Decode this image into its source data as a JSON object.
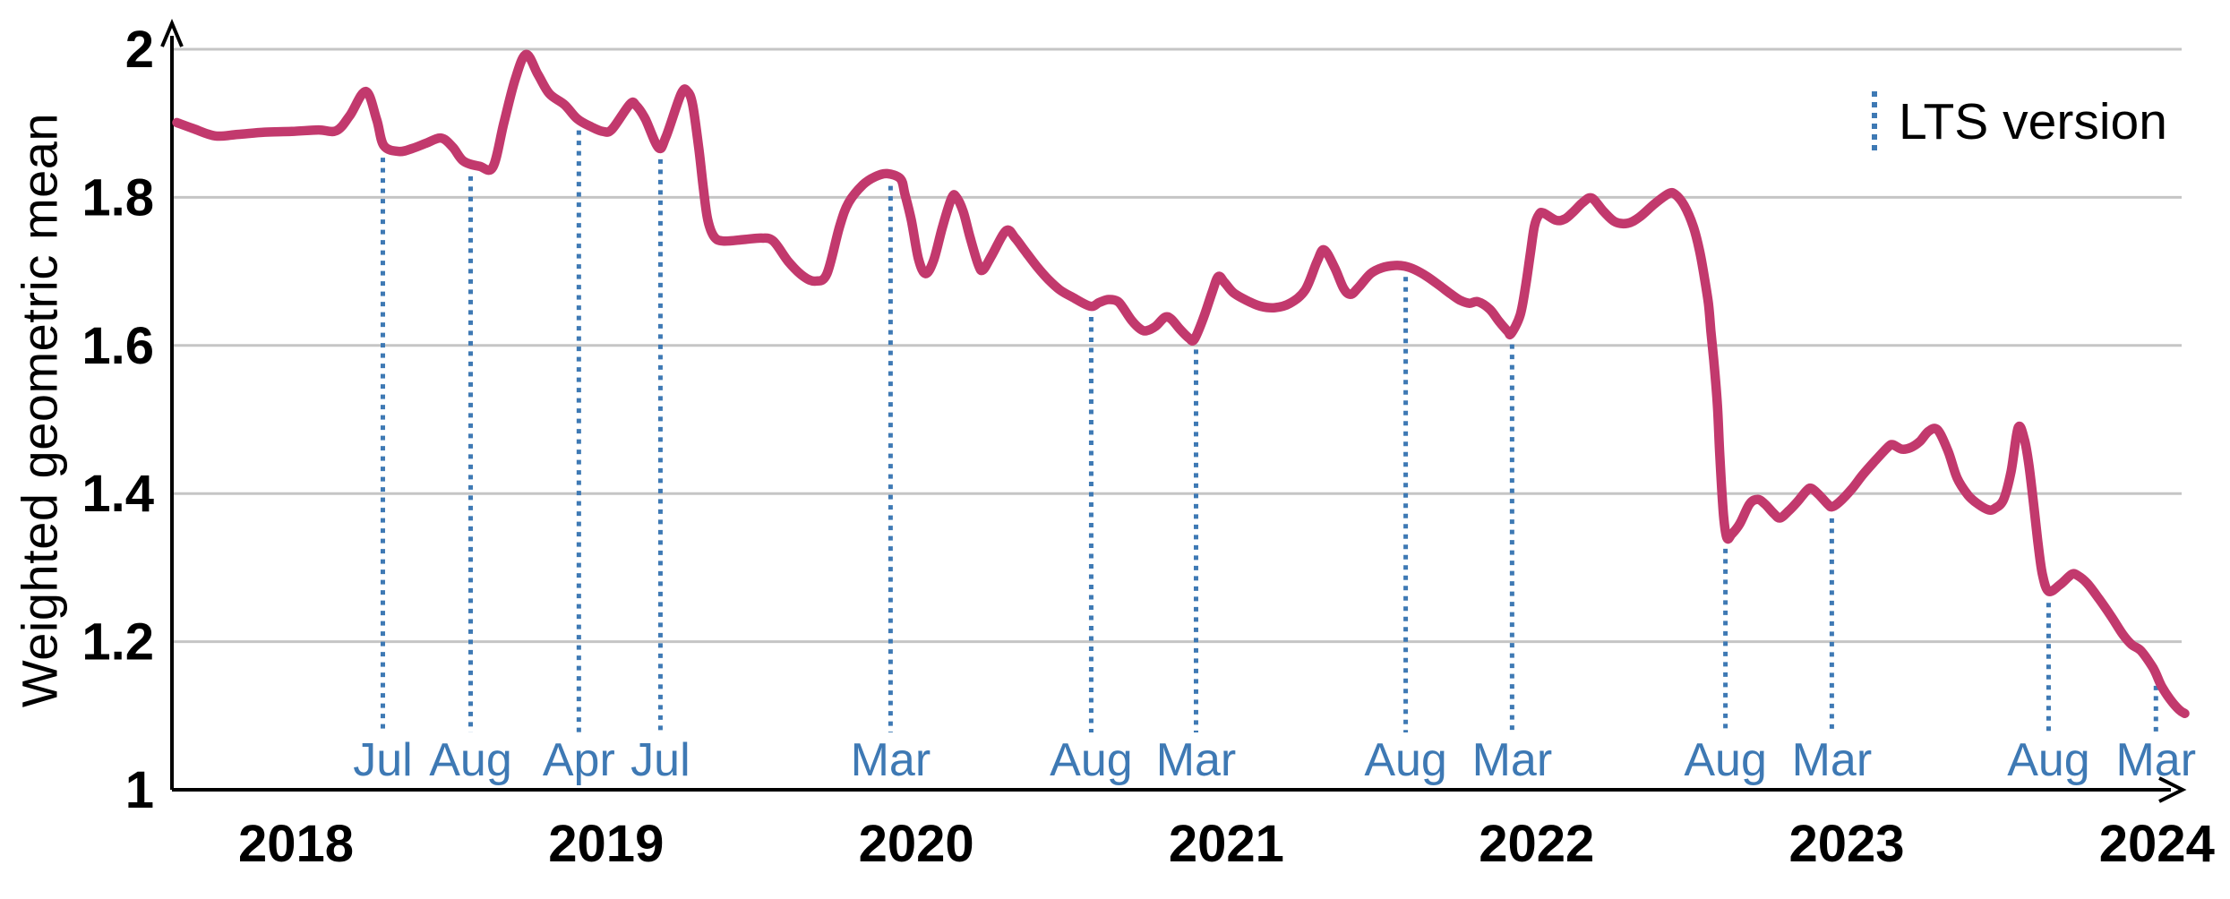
{
  "chart_data": {
    "type": "line",
    "title": "",
    "xlabel": "",
    "ylabel": "Weighted geometric mean",
    "legend_label": "LTS version",
    "legend_position": "top-right",
    "grid": "horizontal",
    "x_axis": {
      "unit": "year",
      "range": [
        2017.6,
        2024.2
      ],
      "ticks": [
        2018,
        2019,
        2020,
        2021,
        2022,
        2023,
        2024
      ]
    },
    "y_axis": {
      "range": [
        1,
        2
      ],
      "ticks": [
        1,
        1.2,
        1.4,
        1.6,
        1.8,
        2
      ],
      "tick_labels": [
        "1",
        "1.2",
        "1.4",
        "1.6",
        "1.8",
        "2"
      ]
    },
    "colors": {
      "series": "#c2396d",
      "lts_marker": "#3e79b4",
      "grid": "#c5c5c5",
      "axis": "#000000",
      "month_label": "#3e79b4",
      "text": "#000000"
    },
    "lts_markers": [
      {
        "label": "Jul",
        "x": 2018.28,
        "curve_value": 1.868
      },
      {
        "label": "Aug",
        "x": 2018.563,
        "curve_value": 1.843
      },
      {
        "label": "Apr",
        "x": 2018.912,
        "curve_value": 1.905
      },
      {
        "label": "Jul",
        "x": 2019.175,
        "curve_value": 1.866
      },
      {
        "label": "Mar",
        "x": 2019.917,
        "curve_value": 1.83
      },
      {
        "label": "Aug",
        "x": 2020.564,
        "curve_value": 1.653
      },
      {
        "label": "Mar",
        "x": 2020.902,
        "curve_value": 1.609
      },
      {
        "label": "Aug",
        "x": 2021.578,
        "curve_value": 1.707
      },
      {
        "label": "Mar",
        "x": 2021.921,
        "curve_value": 1.616
      },
      {
        "label": "Aug",
        "x": 2022.609,
        "curve_value": 1.34
      },
      {
        "label": "Mar",
        "x": 2022.952,
        "curve_value": 1.381
      },
      {
        "label": "Aug",
        "x": 2023.651,
        "curve_value": 1.267
      },
      {
        "label": "Mar",
        "x": 2023.997,
        "curve_value": 1.155
      }
    ],
    "series": [
      {
        "name": "Weighted geometric mean",
        "color": "#c2396d",
        "points": [
          [
            2017.616,
            1.901
          ],
          [
            2017.668,
            1.893
          ],
          [
            2017.74,
            1.883
          ],
          [
            2017.812,
            1.885
          ],
          [
            2017.899,
            1.888
          ],
          [
            2017.986,
            1.889
          ],
          [
            2018.072,
            1.891
          ],
          [
            2018.13,
            1.89
          ],
          [
            2018.173,
            1.91
          ],
          [
            2018.225,
            1.943
          ],
          [
            2018.26,
            1.905
          ],
          [
            2018.283,
            1.87
          ],
          [
            2018.332,
            1.862
          ],
          [
            2018.375,
            1.866
          ],
          [
            2018.419,
            1.873
          ],
          [
            2018.468,
            1.88
          ],
          [
            2018.505,
            1.868
          ],
          [
            2018.54,
            1.849
          ],
          [
            2018.592,
            1.842
          ],
          [
            2018.635,
            1.841
          ],
          [
            2018.67,
            1.9
          ],
          [
            2018.707,
            1.96
          ],
          [
            2018.742,
            1.993
          ],
          [
            2018.78,
            1.966
          ],
          [
            2018.817,
            1.94
          ],
          [
            2018.866,
            1.925
          ],
          [
            2018.907,
            1.906
          ],
          [
            2018.953,
            1.895
          ],
          [
            2018.99,
            1.889
          ],
          [
            2019.019,
            1.892
          ],
          [
            2019.077,
            1.926
          ],
          [
            2019.097,
            1.924
          ],
          [
            2019.126,
            1.906
          ],
          [
            2019.169,
            1.867
          ],
          [
            2019.193,
            1.882
          ],
          [
            2019.242,
            1.94
          ],
          [
            2019.262,
            1.943
          ],
          [
            2019.279,
            1.925
          ],
          [
            2019.299,
            1.865
          ],
          [
            2019.314,
            1.81
          ],
          [
            2019.328,
            1.769
          ],
          [
            2019.348,
            1.747
          ],
          [
            2019.377,
            1.741
          ],
          [
            2019.444,
            1.743
          ],
          [
            2019.501,
            1.745
          ],
          [
            2019.539,
            1.741
          ],
          [
            2019.588,
            1.713
          ],
          [
            2019.637,
            1.693
          ],
          [
            2019.675,
            1.687
          ],
          [
            2019.712,
            1.697
          ],
          [
            2019.753,
            1.761
          ],
          [
            2019.782,
            1.793
          ],
          [
            2019.828,
            1.817
          ],
          [
            2019.868,
            1.828
          ],
          [
            2019.906,
            1.832
          ],
          [
            2019.949,
            1.825
          ],
          [
            2019.963,
            1.805
          ],
          [
            2019.984,
            1.769
          ],
          [
            2020.007,
            1.717
          ],
          [
            2020.03,
            1.697
          ],
          [
            2020.056,
            1.715
          ],
          [
            2020.085,
            1.761
          ],
          [
            2020.114,
            1.799
          ],
          [
            2020.128,
            1.801
          ],
          [
            2020.151,
            1.781
          ],
          [
            2020.174,
            1.745
          ],
          [
            2020.2,
            1.709
          ],
          [
            2020.215,
            1.702
          ],
          [
            2020.244,
            1.722
          ],
          [
            2020.29,
            1.755
          ],
          [
            2020.319,
            1.745
          ],
          [
            2020.348,
            1.729
          ],
          [
            2020.388,
            1.707
          ],
          [
            2020.426,
            1.689
          ],
          [
            2020.463,
            1.675
          ],
          [
            2020.504,
            1.665
          ],
          [
            2020.561,
            1.653
          ],
          [
            2020.59,
            1.658
          ],
          [
            2020.619,
            1.662
          ],
          [
            2020.648,
            1.66
          ],
          [
            2020.665,
            1.652
          ],
          [
            2020.694,
            1.634
          ],
          [
            2020.723,
            1.622
          ],
          [
            2020.743,
            1.62
          ],
          [
            2020.772,
            1.626
          ],
          [
            2020.801,
            1.638
          ],
          [
            2020.821,
            1.636
          ],
          [
            2020.85,
            1.622
          ],
          [
            2020.879,
            1.61
          ],
          [
            2020.896,
            1.608
          ],
          [
            2020.925,
            1.636
          ],
          [
            2020.954,
            1.672
          ],
          [
            2020.974,
            1.693
          ],
          [
            2020.994,
            1.685
          ],
          [
            2021.023,
            1.671
          ],
          [
            2021.069,
            1.66
          ],
          [
            2021.11,
            1.653
          ],
          [
            2021.156,
            1.651
          ],
          [
            2021.205,
            1.657
          ],
          [
            2021.254,
            1.675
          ],
          [
            2021.292,
            1.713
          ],
          [
            2021.315,
            1.729
          ],
          [
            2021.349,
            1.705
          ],
          [
            2021.378,
            1.677
          ],
          [
            2021.401,
            1.669
          ],
          [
            2021.427,
            1.679
          ],
          [
            2021.465,
            1.697
          ],
          [
            2021.502,
            1.705
          ],
          [
            2021.543,
            1.708
          ],
          [
            2021.575,
            1.707
          ],
          [
            2021.609,
            1.702
          ],
          [
            2021.647,
            1.693
          ],
          [
            2021.687,
            1.681
          ],
          [
            2021.725,
            1.669
          ],
          [
            2021.754,
            1.661
          ],
          [
            2021.783,
            1.657
          ],
          [
            2021.811,
            1.659
          ],
          [
            2021.849,
            1.649
          ],
          [
            2021.878,
            1.633
          ],
          [
            2021.907,
            1.619
          ],
          [
            2021.918,
            1.616
          ],
          [
            2021.947,
            1.641
          ],
          [
            2021.965,
            1.681
          ],
          [
            2021.979,
            1.721
          ],
          [
            2021.993,
            1.761
          ],
          [
            2022.008,
            1.777
          ],
          [
            2022.022,
            1.779
          ],
          [
            2022.063,
            1.769
          ],
          [
            2022.092,
            1.771
          ],
          [
            2022.12,
            1.781
          ],
          [
            2022.149,
            1.793
          ],
          [
            2022.178,
            1.799
          ],
          [
            2022.216,
            1.781
          ],
          [
            2022.253,
            1.767
          ],
          [
            2022.294,
            1.765
          ],
          [
            2022.331,
            1.773
          ],
          [
            2022.38,
            1.791
          ],
          [
            2022.426,
            1.805
          ],
          [
            2022.447,
            1.804
          ],
          [
            2022.476,
            1.789
          ],
          [
            2022.505,
            1.761
          ],
          [
            2022.525,
            1.729
          ],
          [
            2022.539,
            1.697
          ],
          [
            2022.554,
            1.657
          ],
          [
            2022.562,
            1.62
          ],
          [
            2022.571,
            1.581
          ],
          [
            2022.583,
            1.52
          ],
          [
            2022.591,
            1.45
          ],
          [
            2022.603,
            1.37
          ],
          [
            2022.614,
            1.34
          ],
          [
            2022.629,
            1.345
          ],
          [
            2022.655,
            1.359
          ],
          [
            2022.687,
            1.386
          ],
          [
            2022.713,
            1.392
          ],
          [
            2022.736,
            1.386
          ],
          [
            2022.765,
            1.373
          ],
          [
            2022.785,
            1.367
          ],
          [
            2022.814,
            1.377
          ],
          [
            2022.843,
            1.39
          ],
          [
            2022.871,
            1.404
          ],
          [
            2022.886,
            1.407
          ],
          [
            2022.909,
            1.399
          ],
          [
            2022.938,
            1.386
          ],
          [
            2022.952,
            1.382
          ],
          [
            2022.975,
            1.388
          ],
          [
            2023.016,
            1.406
          ],
          [
            2023.053,
            1.426
          ],
          [
            2023.091,
            1.444
          ],
          [
            2023.131,
            1.462
          ],
          [
            2023.148,
            1.466
          ],
          [
            2023.177,
            1.46
          ],
          [
            2023.206,
            1.462
          ],
          [
            2023.235,
            1.47
          ],
          [
            2023.264,
            1.484
          ],
          [
            2023.293,
            1.486
          ],
          [
            2023.327,
            1.457
          ],
          [
            2023.356,
            1.421
          ],
          [
            2023.391,
            1.398
          ],
          [
            2023.423,
            1.386
          ],
          [
            2023.457,
            1.378
          ],
          [
            2023.478,
            1.38
          ],
          [
            2023.506,
            1.392
          ],
          [
            2023.53,
            1.43
          ],
          [
            2023.553,
            1.489
          ],
          [
            2023.573,
            1.473
          ],
          [
            2023.587,
            1.44
          ],
          [
            2023.602,
            1.388
          ],
          [
            2023.616,
            1.336
          ],
          [
            2023.631,
            1.291
          ],
          [
            2023.651,
            1.268
          ],
          [
            2023.688,
            1.277
          ],
          [
            2023.726,
            1.291
          ],
          [
            2023.746,
            1.289
          ],
          [
            2023.775,
            1.279
          ],
          [
            2023.813,
            1.258
          ],
          [
            2023.853,
            1.234
          ],
          [
            2023.89,
            1.21
          ],
          [
            2023.919,
            1.196
          ],
          [
            2023.948,
            1.188
          ],
          [
            2023.983,
            1.168
          ],
          [
            2023.997,
            1.157
          ],
          [
            2024.015,
            1.14
          ],
          [
            2024.043,
            1.122
          ],
          [
            2024.072,
            1.108
          ],
          [
            2024.09,
            1.103
          ]
        ]
      }
    ]
  }
}
